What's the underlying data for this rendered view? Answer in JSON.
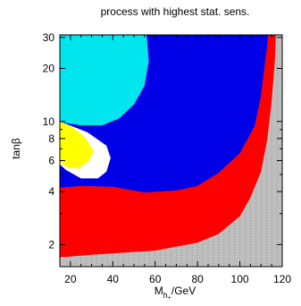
{
  "chart_data": {
    "type": "heatmap",
    "title": "process with highest stat. sens.",
    "xlabel_main": "M",
    "xlabel_sub": "h",
    "xlabel_sub2": "+",
    "xlabel_unit": "/GeV",
    "ylabel_main": "tan",
    "ylabel_greek": "β",
    "xscale": "linear",
    "yscale": "log",
    "xlim": [
      15,
      120
    ],
    "ylim": [
      1.5,
      31
    ],
    "x_ticks": [
      20,
      40,
      60,
      80,
      100,
      120
    ],
    "y_ticks": [
      2,
      4,
      6,
      8,
      10,
      20,
      30
    ],
    "grid": false,
    "colors": {
      "grey": "#bebebe",
      "red": "#ff0000",
      "blue": "#0000e6",
      "cyan": "#00e5ee",
      "yellow": "#ffff00",
      "white": "#ffffff"
    },
    "regions": [
      {
        "color": "red",
        "boundary": [
          [
            15,
            1.5
          ],
          [
            15,
            4.2
          ],
          [
            25,
            4.3
          ],
          [
            40,
            4.25
          ],
          [
            55,
            3.95
          ],
          [
            70,
            4.05
          ],
          [
            80,
            4.3
          ],
          [
            90,
            5.1
          ],
          [
            100,
            6.6
          ],
          [
            107,
            9.4
          ],
          [
            110,
            14
          ],
          [
            112,
            22
          ],
          [
            113.5,
            31
          ],
          [
            117,
            31
          ],
          [
            116.5,
            22
          ],
          [
            115,
            13
          ],
          [
            113,
            8
          ],
          [
            110,
            5.2
          ],
          [
            105,
            3.7
          ],
          [
            100,
            2.9
          ],
          [
            90,
            2.3
          ],
          [
            80,
            2.05
          ],
          [
            70,
            1.95
          ],
          [
            60,
            1.85
          ],
          [
            45,
            1.8
          ],
          [
            30,
            1.75
          ],
          [
            22,
            1.72
          ],
          [
            18,
            1.7
          ],
          [
            15,
            1.7
          ]
        ]
      },
      {
        "color": "blue",
        "boundary": [
          [
            15,
            4.2
          ],
          [
            25,
            4.3
          ],
          [
            40,
            4.25
          ],
          [
            55,
            3.95
          ],
          [
            70,
            4.05
          ],
          [
            80,
            4.3
          ],
          [
            90,
            5.1
          ],
          [
            100,
            6.6
          ],
          [
            107,
            9.4
          ],
          [
            110,
            14
          ],
          [
            112,
            22
          ],
          [
            113.5,
            31
          ],
          [
            15,
            31
          ]
        ]
      },
      {
        "color": "cyan",
        "boundary": [
          [
            15,
            31
          ],
          [
            56,
            31
          ],
          [
            57,
            22
          ],
          [
            55,
            16
          ],
          [
            50,
            12.5
          ],
          [
            43,
            10.4
          ],
          [
            35,
            9.5
          ],
          [
            25,
            9.5
          ],
          [
            18,
            9.8
          ],
          [
            15,
            10
          ]
        ]
      },
      {
        "color": "white",
        "boundary": [
          [
            15,
            5.7
          ],
          [
            15,
            10
          ],
          [
            28,
            8.7
          ],
          [
            37,
            7.3
          ],
          [
            39,
            6.2
          ],
          [
            37,
            5.2
          ],
          [
            33,
            4.75
          ],
          [
            25,
            4.75
          ],
          [
            18,
            5.3
          ]
        ]
      },
      {
        "color": "yellow",
        "boundary": [
          [
            15,
            5.9
          ],
          [
            15,
            10
          ],
          [
            21,
            9.3
          ],
          [
            27,
            8.1
          ],
          [
            31,
            6.8
          ],
          [
            29,
            6
          ],
          [
            24,
            5.4
          ],
          [
            18,
            5.5
          ]
        ]
      }
    ]
  }
}
